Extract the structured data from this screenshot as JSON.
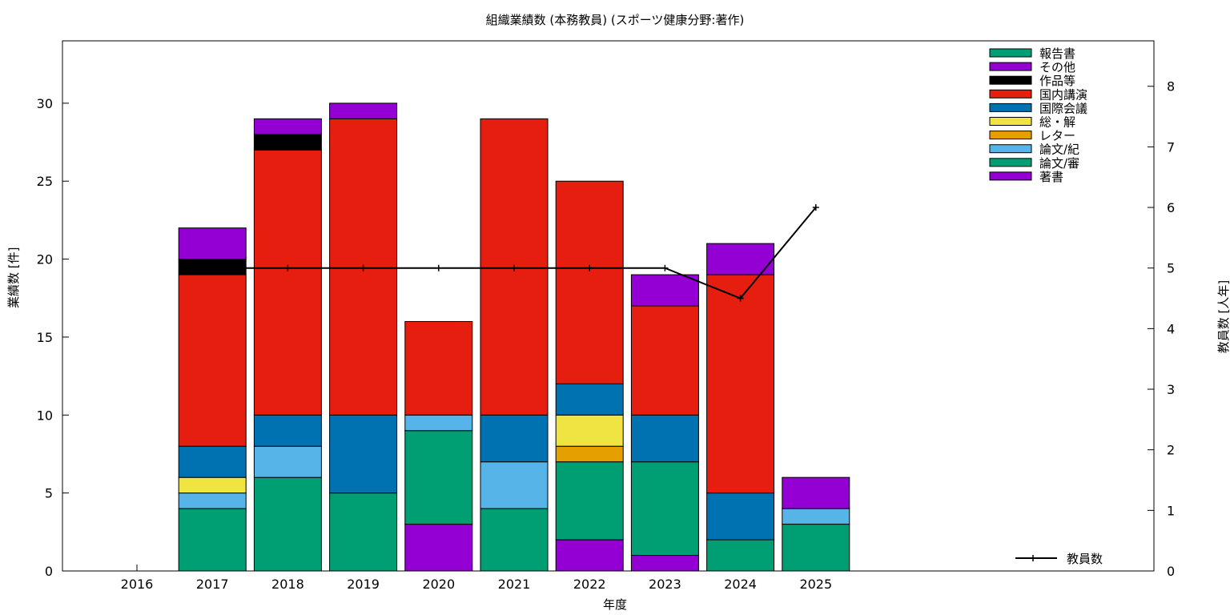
{
  "chart_data": {
    "type": "bar",
    "title": "組織業績数 (本務教員) (スポーツ健康分野:著作)",
    "xlabel": "年度",
    "ylabel": "業績数 [件]",
    "y2label": "教員数 [人年]",
    "categories": [
      "2016",
      "2017",
      "2018",
      "2019",
      "2020",
      "2021",
      "2022",
      "2023",
      "2024",
      "2025"
    ],
    "ylim": [
      0,
      34
    ],
    "y2lim": [
      0,
      8.75
    ],
    "yticks": [
      0,
      5,
      10,
      15,
      20,
      25,
      30
    ],
    "y2ticks": [
      0,
      1,
      2,
      3,
      4,
      5,
      6,
      7,
      8
    ],
    "stacked": true,
    "legend_position": "top-right",
    "series": [
      {
        "name": "著書",
        "color": "#9400d3",
        "values": [
          0,
          0,
          0,
          0,
          3,
          0,
          2,
          1,
          0,
          0
        ]
      },
      {
        "name": "論文/審",
        "color": "#009e73",
        "values": [
          0,
          4,
          6,
          5,
          6,
          4,
          5,
          6,
          2,
          3
        ]
      },
      {
        "name": "論文/紀",
        "color": "#56b4e9",
        "values": [
          0,
          1,
          2,
          0,
          1,
          3,
          0,
          0,
          0,
          1
        ]
      },
      {
        "name": "レター",
        "color": "#e69f00",
        "values": [
          0,
          0,
          0,
          0,
          0,
          0,
          1,
          0,
          0,
          0
        ]
      },
      {
        "name": "総・解",
        "color": "#f0e442",
        "values": [
          0,
          1,
          0,
          0,
          0,
          0,
          2,
          0,
          0,
          0
        ]
      },
      {
        "name": "国際会議",
        "color": "#0072b2",
        "values": [
          0,
          2,
          2,
          5,
          0,
          3,
          2,
          3,
          3,
          0
        ]
      },
      {
        "name": "国内講演",
        "color": "#e51e10",
        "values": [
          0,
          11,
          17,
          19,
          6,
          19,
          13,
          7,
          14,
          0
        ]
      },
      {
        "name": "作品等",
        "color": "#000000",
        "values": [
          0,
          1,
          1,
          0,
          0,
          0,
          0,
          0,
          0,
          0
        ]
      },
      {
        "name": "その他",
        "color": "#9400d3",
        "values": [
          0,
          2,
          1,
          1,
          0,
          0,
          0,
          2,
          2,
          2
        ]
      },
      {
        "name": "報告書",
        "color": "#009e73",
        "values": [
          0,
          0,
          0,
          0,
          0,
          0,
          0,
          0,
          0,
          0
        ]
      }
    ],
    "line": {
      "name": "教員数",
      "color": "#000000",
      "x": [
        "2017",
        "2018",
        "2019",
        "2020",
        "2021",
        "2022",
        "2023",
        "2024",
        "2025"
      ],
      "values": [
        5,
        5,
        5,
        5,
        5,
        5,
        5,
        4.5,
        6
      ]
    }
  }
}
